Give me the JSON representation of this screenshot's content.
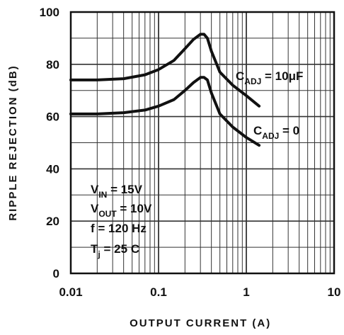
{
  "chart_data": {
    "type": "line",
    "title": "",
    "xlabel": "OUTPUT CURRENT (A)",
    "ylabel": "RIPPLE REJECTION (dB)",
    "xscale": "log",
    "xlim": [
      0.01,
      10
    ],
    "ylim": [
      0,
      100
    ],
    "x_ticks": [
      "0.01",
      "0.1",
      "1",
      "10"
    ],
    "y_ticks": [
      "0",
      "20",
      "40",
      "60",
      "80",
      "100"
    ],
    "grid": true,
    "series": [
      {
        "name": "CADJ = 10µF",
        "label_main": "C",
        "label_sub": "ADJ",
        "label_rest": " = 10μF",
        "color": "#111111",
        "x": [
          0.01,
          0.02,
          0.04,
          0.07,
          0.1,
          0.15,
          0.2,
          0.25,
          0.3,
          0.33,
          0.36,
          0.4,
          0.5,
          0.7,
          1.0,
          1.4
        ],
        "y": [
          74,
          74,
          74.5,
          76,
          78,
          81.5,
          86,
          89.5,
          91.5,
          91.5,
          90,
          85,
          77,
          72,
          68,
          64
        ]
      },
      {
        "name": "CADJ = 0",
        "label_main": "C",
        "label_sub": "ADJ",
        "label_rest": " = 0",
        "color": "#111111",
        "x": [
          0.01,
          0.02,
          0.04,
          0.07,
          0.1,
          0.15,
          0.2,
          0.25,
          0.3,
          0.33,
          0.36,
          0.4,
          0.5,
          0.7,
          1.0,
          1.4
        ],
        "y": [
          61,
          61,
          61.5,
          62.5,
          64,
          66.5,
          70,
          73,
          75,
          75,
          74,
          69,
          61,
          56,
          52,
          49
        ]
      }
    ],
    "conditions": [
      {
        "main": "V",
        "sub": "IN",
        "rest": " = 15V"
      },
      {
        "main": "V",
        "sub": "OUT",
        "rest": " = 10V"
      },
      {
        "main": "f = 120 Hz",
        "sub": "",
        "rest": ""
      },
      {
        "main": "T",
        "sub": "j",
        "rest": " = 25 C"
      }
    ]
  }
}
